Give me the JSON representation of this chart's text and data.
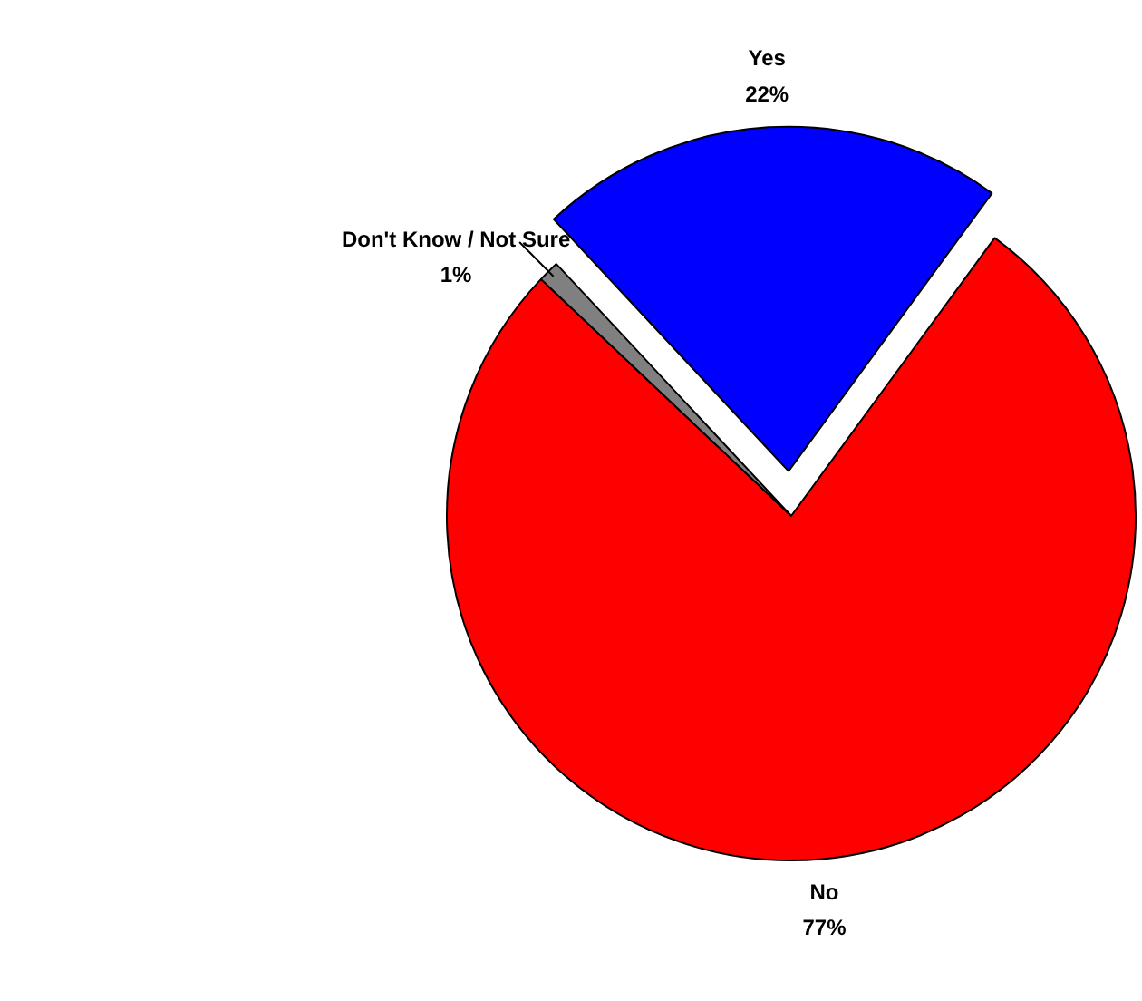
{
  "chart_data": {
    "type": "pie",
    "categories": [
      "Yes",
      "No",
      "Don't Know / Not Sure"
    ],
    "values": [
      22,
      77,
      1
    ],
    "colors": [
      "#0000ff",
      "#ff0000",
      "#808080"
    ],
    "value_labels": [
      "22%",
      "77%",
      "1%"
    ]
  }
}
